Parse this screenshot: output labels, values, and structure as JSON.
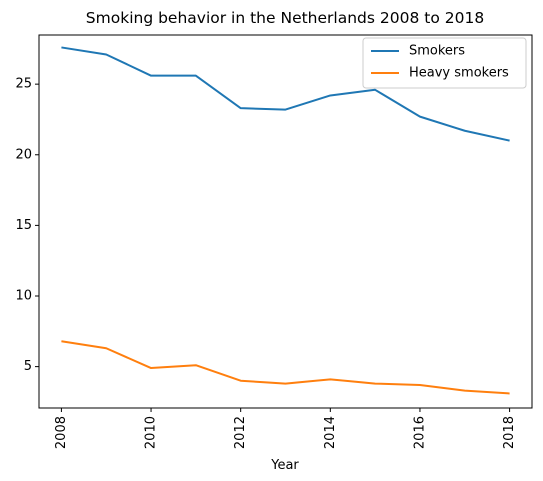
{
  "chart_data": {
    "type": "line",
    "title": "Smoking behavior in the Netherlands 2008 to 2018",
    "xlabel": "Year",
    "ylabel": "",
    "x": [
      2008,
      2009,
      2010,
      2011,
      2012,
      2013,
      2014,
      2015,
      2016,
      2017,
      2018
    ],
    "xlim": [
      2007.5,
      2018.5
    ],
    "ylim": [
      2.07,
      28.48
    ],
    "x_ticks": [
      "2008",
      "2010",
      "2012",
      "2014",
      "2016",
      "2018"
    ],
    "y_ticks": [
      "5",
      "10",
      "15",
      "20",
      "25"
    ],
    "x_tick_rotation": "vertical",
    "grid": false,
    "legend_position": "top-right",
    "series": [
      {
        "name": "Smokers",
        "color": "#1f77b4",
        "values": [
          27.6,
          27.1,
          25.6,
          25.6,
          23.3,
          23.2,
          24.2,
          24.6,
          22.7,
          21.7,
          21.0
        ]
      },
      {
        "name": "Heavy smokers",
        "color": "#ff7f0e",
        "values": [
          6.8,
          6.3,
          4.9,
          5.1,
          4.0,
          3.8,
          4.1,
          3.8,
          3.7,
          3.3,
          3.1
        ]
      }
    ]
  }
}
